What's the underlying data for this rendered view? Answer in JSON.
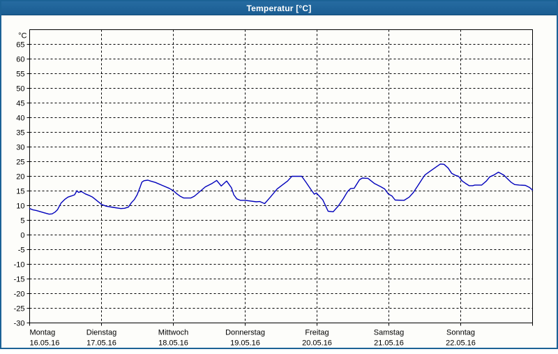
{
  "window": {
    "title": "Temperatur [°C]"
  },
  "colors": {
    "titlebar": "#1c6296",
    "window_border": "#1c6296",
    "title_text": "#ffffff",
    "plot_frame": "#000000",
    "gridline": "#000000",
    "line": "#0000bb",
    "background": "#fdfdfa"
  },
  "chart_data": {
    "type": "line",
    "title": "Temperatur [°C]",
    "unit_label": "°C",
    "ylim": [
      -30,
      70
    ],
    "ytick_step": 5,
    "yticks": [
      65,
      60,
      55,
      50,
      45,
      40,
      35,
      30,
      25,
      20,
      15,
      10,
      5,
      0,
      -5,
      -10,
      -15,
      -20,
      -25,
      -30
    ],
    "grid": true,
    "legend_position": "none",
    "x_axis": {
      "span_hours": 168,
      "days": [
        {
          "name": "Montag",
          "date": "16.05.16"
        },
        {
          "name": "Dienstag",
          "date": "17.05.16"
        },
        {
          "name": "Mittwoch",
          "date": "18.05.16"
        },
        {
          "name": "Donnerstag",
          "date": "19.05.16"
        },
        {
          "name": "Freitag",
          "date": "20.05.16"
        },
        {
          "name": "Samstag",
          "date": "21.05.16"
        },
        {
          "name": "Sonntag",
          "date": "22.05.16"
        }
      ]
    },
    "series": [
      {
        "name": "Temperatur",
        "color": "#0000bb",
        "points_hours_celsius": [
          [
            0,
            9.0
          ],
          [
            1,
            8.6
          ],
          [
            2.3,
            8.3
          ],
          [
            4.7,
            7.6
          ],
          [
            6.5,
            7.1
          ],
          [
            7.5,
            7.2
          ],
          [
            8.5,
            7.8
          ],
          [
            9.3,
            8.6
          ],
          [
            10.5,
            10.9
          ],
          [
            11.7,
            12.1
          ],
          [
            12.8,
            12.9
          ],
          [
            14,
            13.3
          ],
          [
            15,
            13.7
          ],
          [
            15.8,
            15.1
          ],
          [
            16.3,
            14.5
          ],
          [
            17.3,
            14.8
          ],
          [
            18.6,
            14.0
          ],
          [
            19.8,
            13.5
          ],
          [
            21,
            12.9
          ],
          [
            22,
            12.1
          ],
          [
            23.2,
            11.1
          ],
          [
            24,
            10.4
          ],
          [
            25.6,
            9.8
          ],
          [
            27.9,
            9.4
          ],
          [
            30.5,
            9.0
          ],
          [
            31.7,
            9.1
          ],
          [
            33,
            9.5
          ],
          [
            34,
            11.0
          ],
          [
            35,
            12.1
          ],
          [
            35.9,
            13.7
          ],
          [
            36.8,
            16.0
          ],
          [
            37.5,
            18.0
          ],
          [
            38.2,
            18.5
          ],
          [
            39.5,
            18.7
          ],
          [
            40.3,
            18.4
          ],
          [
            42,
            17.9
          ],
          [
            44.3,
            16.9
          ],
          [
            46.6,
            15.9
          ],
          [
            48,
            15.1
          ],
          [
            49.2,
            14.0
          ],
          [
            50.3,
            13.2
          ],
          [
            51.5,
            12.6
          ],
          [
            53.8,
            12.6
          ],
          [
            55,
            13.2
          ],
          [
            56.4,
            14.4
          ],
          [
            58.7,
            16.4
          ],
          [
            61,
            17.6
          ],
          [
            62.5,
            18.6
          ],
          [
            64,
            16.7
          ],
          [
            65.8,
            18.4
          ],
          [
            67.4,
            16.1
          ],
          [
            68.2,
            13.7
          ],
          [
            69.2,
            12.3
          ],
          [
            70.4,
            11.8
          ],
          [
            72,
            11.8
          ],
          [
            75.7,
            11.3
          ],
          [
            76.9,
            11.4
          ],
          [
            78.5,
            10.7
          ],
          [
            80.4,
            12.9
          ],
          [
            82.7,
            15.7
          ],
          [
            84.6,
            17.2
          ],
          [
            86.2,
            18.4
          ],
          [
            87.6,
            20.0
          ],
          [
            90.9,
            20.0
          ],
          [
            92.3,
            18.0
          ],
          [
            93.9,
            15.6
          ],
          [
            95.1,
            13.9
          ],
          [
            95.8,
            14.3
          ],
          [
            97.9,
            12.0
          ],
          [
            99.7,
            8.1
          ],
          [
            101.4,
            7.9
          ],
          [
            103.2,
            10.0
          ],
          [
            104.8,
            12.4
          ],
          [
            106.2,
            14.8
          ],
          [
            107.2,
            15.8
          ],
          [
            108.4,
            15.9
          ],
          [
            110.2,
            18.8
          ],
          [
            111.1,
            19.4
          ],
          [
            113,
            19.3
          ],
          [
            115.1,
            17.6
          ],
          [
            117.4,
            16.4
          ],
          [
            118.6,
            15.7
          ],
          [
            119.8,
            14.0
          ],
          [
            121,
            13.3
          ],
          [
            122.1,
            11.9
          ],
          [
            125.1,
            11.8
          ],
          [
            126.8,
            12.9
          ],
          [
            128.2,
            14.5
          ],
          [
            129.8,
            17.0
          ],
          [
            131.4,
            19.5
          ],
          [
            132.1,
            20.5
          ],
          [
            133.7,
            21.7
          ],
          [
            136.1,
            23.4
          ],
          [
            137.2,
            24.2
          ],
          [
            138.4,
            24.1
          ],
          [
            139.8,
            22.8
          ],
          [
            141,
            21.0
          ],
          [
            142.3,
            20.3
          ],
          [
            143.3,
            20.0
          ],
          [
            144.5,
            18.4
          ],
          [
            145.6,
            17.6
          ],
          [
            146.8,
            16.8
          ],
          [
            148,
            16.8
          ],
          [
            148.7,
            17.0
          ],
          [
            151,
            17.0
          ],
          [
            152.6,
            18.4
          ],
          [
            153.7,
            19.8
          ],
          [
            155,
            20.4
          ],
          [
            156.6,
            21.4
          ],
          [
            158.4,
            20.4
          ],
          [
            159.6,
            19.2
          ],
          [
            160.8,
            18.0
          ],
          [
            162,
            17.2
          ],
          [
            163.6,
            17.0
          ],
          [
            165.6,
            16.9
          ],
          [
            167,
            16.2
          ],
          [
            168,
            15.3
          ]
        ]
      }
    ]
  }
}
